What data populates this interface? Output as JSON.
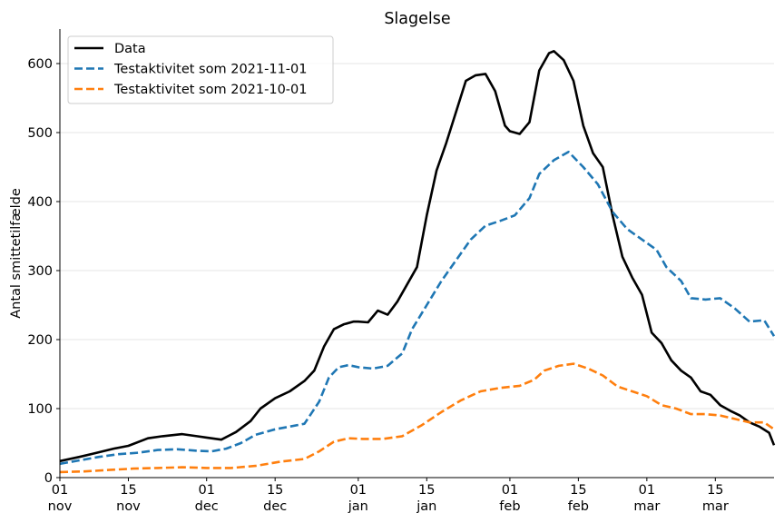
{
  "chart_data": {
    "type": "line",
    "title": "Slagelse",
    "xlabel": "",
    "ylabel": "Antal smittetilfælde",
    "ylim": [
      0,
      650
    ],
    "yticks": [
      0,
      100,
      200,
      300,
      400,
      500,
      600
    ],
    "xlim": [
      "2021-11-01",
      "2022-03-27"
    ],
    "xticks": [
      {
        "date": "2021-11-01",
        "top": "01",
        "bottom": "nov"
      },
      {
        "date": "2021-11-15",
        "top": "15",
        "bottom": "nov"
      },
      {
        "date": "2021-12-01",
        "top": "01",
        "bottom": "dec"
      },
      {
        "date": "2021-12-15",
        "top": "15",
        "bottom": "dec"
      },
      {
        "date": "2022-01-01",
        "top": "01",
        "bottom": "jan"
      },
      {
        "date": "2022-01-15",
        "top": "15",
        "bottom": "jan"
      },
      {
        "date": "2022-02-01",
        "top": "01",
        "bottom": "feb"
      },
      {
        "date": "2022-02-15",
        "top": "15",
        "bottom": "feb"
      },
      {
        "date": "2022-03-01",
        "top": "01",
        "bottom": "mar"
      },
      {
        "date": "2022-03-15",
        "top": "15",
        "bottom": "mar"
      }
    ],
    "grid": "horizontal",
    "legend_position": "top-left",
    "series": [
      {
        "name": "Data",
        "color": "#000000",
        "style": "solid",
        "points": [
          [
            "2021-11-01",
            24
          ],
          [
            "2021-11-05",
            30
          ],
          [
            "2021-11-08",
            35
          ],
          [
            "2021-11-12",
            42
          ],
          [
            "2021-11-15",
            46
          ],
          [
            "2021-11-19",
            57
          ],
          [
            "2021-11-22",
            60
          ],
          [
            "2021-11-26",
            63
          ],
          [
            "2021-11-29",
            60
          ],
          [
            "2021-12-01",
            58
          ],
          [
            "2021-12-04",
            55
          ],
          [
            "2021-12-07",
            66
          ],
          [
            "2021-12-10",
            82
          ],
          [
            "2021-12-12",
            100
          ],
          [
            "2021-12-15",
            115
          ],
          [
            "2021-12-18",
            125
          ],
          [
            "2021-12-21",
            140
          ],
          [
            "2021-12-23",
            155
          ],
          [
            "2021-12-25",
            190
          ],
          [
            "2021-12-27",
            215
          ],
          [
            "2021-12-29",
            222
          ],
          [
            "2021-12-31",
            226
          ],
          [
            "2022-01-01",
            226
          ],
          [
            "2022-01-03",
            225
          ],
          [
            "2022-01-05",
            242
          ],
          [
            "2022-01-07",
            236
          ],
          [
            "2022-01-09",
            255
          ],
          [
            "2022-01-11",
            280
          ],
          [
            "2022-01-13",
            305
          ],
          [
            "2022-01-15",
            380
          ],
          [
            "2022-01-17",
            445
          ],
          [
            "2022-01-19",
            485
          ],
          [
            "2022-01-21",
            530
          ],
          [
            "2022-01-23",
            575
          ],
          [
            "2022-01-25",
            583
          ],
          [
            "2022-01-27",
            585
          ],
          [
            "2022-01-29",
            560
          ],
          [
            "2022-01-31",
            510
          ],
          [
            "2022-02-01",
            502
          ],
          [
            "2022-02-03",
            498
          ],
          [
            "2022-02-05",
            515
          ],
          [
            "2022-02-07",
            590
          ],
          [
            "2022-02-09",
            615
          ],
          [
            "2022-02-10",
            618
          ],
          [
            "2022-02-12",
            605
          ],
          [
            "2022-02-14",
            575
          ],
          [
            "2022-02-16",
            510
          ],
          [
            "2022-02-18",
            470
          ],
          [
            "2022-02-20",
            450
          ],
          [
            "2022-02-22",
            380
          ],
          [
            "2022-02-24",
            320
          ],
          [
            "2022-02-26",
            290
          ],
          [
            "2022-02-28",
            265
          ],
          [
            "2022-03-02",
            210
          ],
          [
            "2022-03-04",
            195
          ],
          [
            "2022-03-06",
            170
          ],
          [
            "2022-03-08",
            155
          ],
          [
            "2022-03-10",
            145
          ],
          [
            "2022-03-12",
            125
          ],
          [
            "2022-03-14",
            120
          ],
          [
            "2022-03-16",
            105
          ],
          [
            "2022-03-18",
            97
          ],
          [
            "2022-03-20",
            90
          ],
          [
            "2022-03-22",
            80
          ],
          [
            "2022-03-24",
            74
          ],
          [
            "2022-03-26",
            65
          ],
          [
            "2022-03-27",
            47
          ]
        ]
      },
      {
        "name": "Testaktivitet som 2021-11-01",
        "color": "#1f77b4",
        "style": "dashed",
        "points": [
          [
            "2021-11-01",
            20
          ],
          [
            "2021-11-05",
            25
          ],
          [
            "2021-11-09",
            30
          ],
          [
            "2021-11-13",
            34
          ],
          [
            "2021-11-17",
            36
          ],
          [
            "2021-11-21",
            40
          ],
          [
            "2021-11-25",
            41
          ],
          [
            "2021-11-29",
            39
          ],
          [
            "2021-12-02",
            38
          ],
          [
            "2021-12-05",
            42
          ],
          [
            "2021-12-08",
            50
          ],
          [
            "2021-12-11",
            62
          ],
          [
            "2021-12-15",
            70
          ],
          [
            "2021-12-18",
            74
          ],
          [
            "2021-12-21",
            78
          ],
          [
            "2021-12-24",
            110
          ],
          [
            "2021-12-26",
            145
          ],
          [
            "2021-12-28",
            160
          ],
          [
            "2021-12-30",
            163
          ],
          [
            "2022-01-01",
            160
          ],
          [
            "2022-01-04",
            158
          ],
          [
            "2022-01-07",
            162
          ],
          [
            "2022-01-10",
            180
          ],
          [
            "2022-01-12",
            215
          ],
          [
            "2022-01-15",
            250
          ],
          [
            "2022-01-18",
            285
          ],
          [
            "2022-01-21",
            315
          ],
          [
            "2022-01-24",
            345
          ],
          [
            "2022-01-27",
            365
          ],
          [
            "2022-01-30",
            372
          ],
          [
            "2022-02-02",
            380
          ],
          [
            "2022-02-05",
            405
          ],
          [
            "2022-02-07",
            440
          ],
          [
            "2022-02-10",
            460
          ],
          [
            "2022-02-13",
            472
          ],
          [
            "2022-02-16",
            450
          ],
          [
            "2022-02-19",
            425
          ],
          [
            "2022-02-22",
            385
          ],
          [
            "2022-02-25",
            360
          ],
          [
            "2022-02-28",
            345
          ],
          [
            "2022-03-03",
            330
          ],
          [
            "2022-03-05",
            305
          ],
          [
            "2022-03-08",
            285
          ],
          [
            "2022-03-10",
            260
          ],
          [
            "2022-03-13",
            258
          ],
          [
            "2022-03-16",
            260
          ],
          [
            "2022-03-19",
            245
          ],
          [
            "2022-03-22",
            226
          ],
          [
            "2022-03-25",
            228
          ],
          [
            "2022-03-27",
            205
          ]
        ]
      },
      {
        "name": "Testaktivitet som 2021-10-01",
        "color": "#ff7f0e",
        "style": "dashed",
        "points": [
          [
            "2021-11-01",
            8
          ],
          [
            "2021-11-06",
            9
          ],
          [
            "2021-11-11",
            11
          ],
          [
            "2021-11-16",
            13
          ],
          [
            "2021-11-21",
            14
          ],
          [
            "2021-11-26",
            15
          ],
          [
            "2021-12-01",
            14
          ],
          [
            "2021-12-06",
            14
          ],
          [
            "2021-12-11",
            17
          ],
          [
            "2021-12-16",
            23
          ],
          [
            "2021-12-21",
            27
          ],
          [
            "2021-12-24",
            38
          ],
          [
            "2021-12-27",
            52
          ],
          [
            "2021-12-30",
            57
          ],
          [
            "2022-01-02",
            56
          ],
          [
            "2022-01-06",
            56
          ],
          [
            "2022-01-10",
            60
          ],
          [
            "2022-01-14",
            76
          ],
          [
            "2022-01-18",
            95
          ],
          [
            "2022-01-22",
            112
          ],
          [
            "2022-01-26",
            125
          ],
          [
            "2022-01-30",
            130
          ],
          [
            "2022-02-03",
            133
          ],
          [
            "2022-02-06",
            142
          ],
          [
            "2022-02-08",
            155
          ],
          [
            "2022-02-11",
            162
          ],
          [
            "2022-02-14",
            165
          ],
          [
            "2022-02-17",
            158
          ],
          [
            "2022-02-20",
            148
          ],
          [
            "2022-02-23",
            132
          ],
          [
            "2022-02-26",
            125
          ],
          [
            "2022-03-01",
            118
          ],
          [
            "2022-03-04",
            105
          ],
          [
            "2022-03-07",
            100
          ],
          [
            "2022-03-10",
            92
          ],
          [
            "2022-03-13",
            92
          ],
          [
            "2022-03-16",
            90
          ],
          [
            "2022-03-19",
            85
          ],
          [
            "2022-03-22",
            80
          ],
          [
            "2022-03-25",
            80
          ],
          [
            "2022-03-27",
            70
          ]
        ]
      }
    ]
  }
}
